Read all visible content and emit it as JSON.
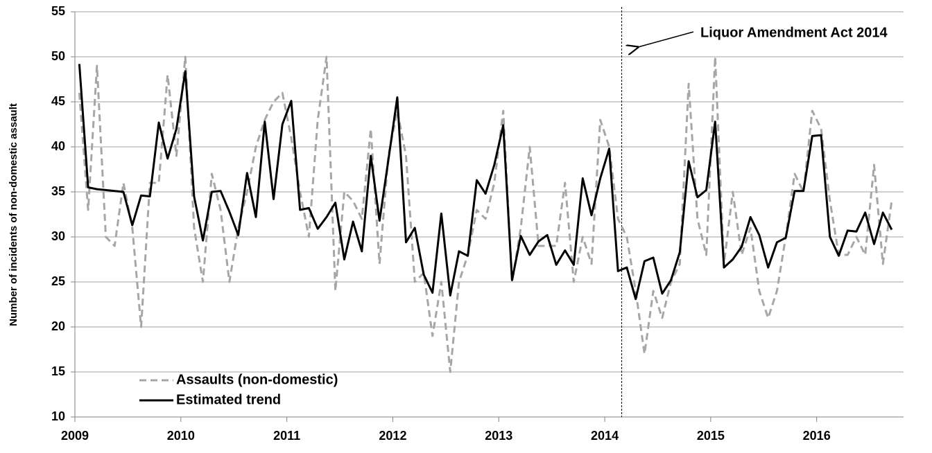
{
  "chart_data": {
    "type": "line",
    "y_label": "Number of incidents of non-domestic assault",
    "annotation": "Liquor Amendment Act 2014",
    "vline": 2014.16,
    "xlim": [
      2009,
      2016.82
    ],
    "xticks": [
      2009,
      2010,
      2011,
      2012,
      2013,
      2014,
      2015,
      2016
    ],
    "ylim": [
      10,
      55
    ],
    "yticks": [
      10,
      15,
      20,
      25,
      30,
      35,
      40,
      45,
      50,
      55
    ],
    "grid": true,
    "legend": "lower left",
    "x": [
      2009.042,
      2009.125,
      2009.208,
      2009.292,
      2009.375,
      2009.458,
      2009.542,
      2009.625,
      2009.708,
      2009.792,
      2009.875,
      2009.958,
      2010.042,
      2010.125,
      2010.208,
      2010.292,
      2010.375,
      2010.458,
      2010.542,
      2010.625,
      2010.708,
      2010.792,
      2010.875,
      2010.958,
      2011.042,
      2011.125,
      2011.208,
      2011.292,
      2011.375,
      2011.458,
      2011.542,
      2011.625,
      2011.708,
      2011.792,
      2011.875,
      2011.958,
      2012.042,
      2012.125,
      2012.208,
      2012.292,
      2012.375,
      2012.458,
      2012.542,
      2012.625,
      2012.708,
      2012.792,
      2012.875,
      2012.958,
      2013.042,
      2013.125,
      2013.208,
      2013.292,
      2013.375,
      2013.458,
      2013.542,
      2013.625,
      2013.708,
      2013.792,
      2013.875,
      2013.958,
      2014.042,
      2014.125,
      2014.208,
      2014.292,
      2014.375,
      2014.458,
      2014.542,
      2014.625,
      2014.708,
      2014.792,
      2014.875,
      2014.958,
      2015.042,
      2015.125,
      2015.208,
      2015.292,
      2015.375,
      2015.458,
      2015.542,
      2015.625,
      2015.708,
      2015.792,
      2015.875,
      2015.958,
      2016.042,
      2016.125,
      2016.208,
      2016.292,
      2016.375,
      2016.458,
      2016.542,
      2016.625,
      2016.708
    ],
    "series": [
      {
        "name": "Assaults (non-domestic)",
        "color": "#a6a6a6",
        "dashed": true,
        "values": [
          46,
          33,
          49,
          30,
          29,
          36,
          31,
          20,
          36,
          36,
          48,
          39,
          50,
          31,
          25,
          37,
          33,
          25,
          31,
          35,
          40,
          43,
          45,
          46,
          41,
          35,
          30,
          43,
          50,
          24,
          35,
          34,
          32,
          42,
          27,
          39,
          44,
          39,
          25,
          26,
          19,
          25,
          15,
          25,
          28,
          33,
          32,
          36,
          44,
          25,
          31,
          40,
          29,
          29,
          29,
          36,
          25,
          30,
          27,
          43,
          40,
          32,
          30,
          24,
          17,
          24,
          21,
          25,
          27,
          47,
          32,
          28,
          50,
          27,
          35,
          28,
          31,
          24,
          21,
          24,
          30,
          37,
          35,
          44,
          42,
          34,
          28,
          28,
          30,
          28,
          38,
          27,
          34
        ]
      },
      {
        "name": "Estimated trend",
        "color": "#000000",
        "dashed": false,
        "values": [
          49.2,
          35.5,
          35.3,
          35.2,
          35.1,
          35.0,
          31.3,
          34.6,
          34.5,
          42.7,
          38.7,
          42,
          48.4,
          34.5,
          29.6,
          35,
          35.1,
          32.8,
          30.2,
          37.1,
          32.2,
          42.8,
          34.2,
          42.5,
          45.1,
          33,
          33.2,
          30.9,
          32.2,
          33.8,
          27.5,
          31.7,
          28.4,
          39,
          31.8,
          38.5,
          45.5,
          29.4,
          31,
          25.8,
          23.8,
          32.6,
          23.5,
          28.4,
          27.9,
          36.3,
          34.8,
          38,
          42.4,
          25.2,
          30.1,
          28,
          29.5,
          30.2,
          26.9,
          28.5,
          26.9,
          36.5,
          32.4,
          36.5,
          39.8,
          26.2,
          26.6,
          23.1,
          27.3,
          27.7,
          23.7,
          25.2,
          28.3,
          38.4,
          34.4,
          35.2,
          42.8,
          26.6,
          27.5,
          28.9,
          32.2,
          30.2,
          26.6,
          29.4,
          29.9,
          35.1,
          35.1,
          41.2,
          41.3,
          30,
          27.9,
          30.7,
          30.6,
          32.7,
          29.2,
          32.7,
          30.8
        ]
      }
    ]
  }
}
